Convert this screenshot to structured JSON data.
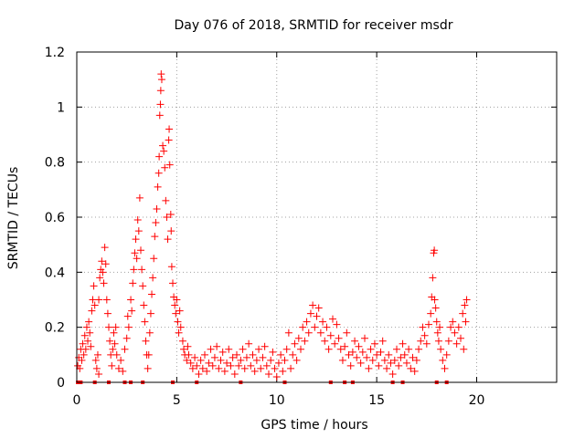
{
  "chart_data": {
    "type": "scatter",
    "title": "Day 076 of 2018, SRMTID for receiver msdr",
    "xlabel": "GPS time / hours",
    "ylabel": "SRMTID / TECUs",
    "xlim": [
      0,
      24
    ],
    "ylim": [
      0,
      1.2
    ],
    "xticks": [
      0,
      5,
      10,
      15,
      20
    ],
    "xtick_labels": [
      "0",
      "5",
      "10",
      "15",
      "20"
    ],
    "yticks": [
      0,
      0.2,
      0.4,
      0.6,
      0.8,
      1,
      1.2
    ],
    "ytick_labels": [
      "0",
      "0.2",
      "0.4",
      "0.6",
      "0.8",
      "1",
      "1.2"
    ],
    "grid": true,
    "marker": "+",
    "color": "#ff0000",
    "series": [
      {
        "name": "SRMTID",
        "points": [
          [
            0.05,
            0.06
          ],
          [
            0.1,
            0.09
          ],
          [
            0.15,
            0.05
          ],
          [
            0.2,
            0.12
          ],
          [
            0.25,
            0.08
          ],
          [
            0.3,
            0.14
          ],
          [
            0.35,
            0.1
          ],
          [
            0.4,
            0.17
          ],
          [
            0.45,
            0.12
          ],
          [
            0.5,
            0.2
          ],
          [
            0.55,
            0.15
          ],
          [
            0.6,
            0.22
          ],
          [
            0.65,
            0.18
          ],
          [
            0.7,
            0.13
          ],
          [
            0.75,
            0.26
          ],
          [
            0.8,
            0.3
          ],
          [
            0.85,
            0.35
          ],
          [
            0.9,
            0.28
          ],
          [
            0.95,
            0.08
          ],
          [
            1.0,
            0.05
          ],
          [
            1.05,
            0.1
          ],
          [
            1.1,
            0.03
          ],
          [
            1.1,
            0.3
          ],
          [
            1.15,
            0.38
          ],
          [
            1.2,
            0.41
          ],
          [
            1.25,
            0.44
          ],
          [
            1.3,
            0.4
          ],
          [
            1.35,
            0.36
          ],
          [
            1.4,
            0.49
          ],
          [
            1.45,
            0.43
          ],
          [
            1.5,
            0.3
          ],
          [
            1.55,
            0.25
          ],
          [
            1.6,
            0.2
          ],
          [
            1.65,
            0.15
          ],
          [
            1.7,
            0.1
          ],
          [
            1.75,
            0.06
          ],
          [
            1.8,
            0.12
          ],
          [
            1.85,
            0.18
          ],
          [
            1.9,
            0.14
          ],
          [
            1.95,
            0.2
          ],
          [
            2.0,
            0.1
          ],
          [
            2.1,
            0.05
          ],
          [
            2.2,
            0.08
          ],
          [
            2.3,
            0.04
          ],
          [
            2.4,
            0.12
          ],
          [
            2.5,
            0.16
          ],
          [
            2.55,
            0.24
          ],
          [
            2.6,
            0.2
          ],
          [
            2.7,
            0.3
          ],
          [
            2.75,
            0.26
          ],
          [
            2.8,
            0.36
          ],
          [
            2.85,
            0.41
          ],
          [
            2.9,
            0.47
          ],
          [
            2.95,
            0.52
          ],
          [
            3.0,
            0.45
          ],
          [
            3.05,
            0.59
          ],
          [
            3.1,
            0.55
          ],
          [
            3.15,
            0.67
          ],
          [
            3.2,
            0.48
          ],
          [
            3.25,
            0.41
          ],
          [
            3.3,
            0.35
          ],
          [
            3.35,
            0.28
          ],
          [
            3.4,
            0.22
          ],
          [
            3.45,
            0.15
          ],
          [
            3.5,
            0.1
          ],
          [
            3.55,
            0.05
          ],
          [
            3.6,
            0.1
          ],
          [
            3.65,
            0.18
          ],
          [
            3.7,
            0.25
          ],
          [
            3.75,
            0.32
          ],
          [
            3.8,
            0.38
          ],
          [
            3.85,
            0.45
          ],
          [
            3.9,
            0.53
          ],
          [
            3.95,
            0.58
          ],
          [
            4.0,
            0.63
          ],
          [
            4.05,
            0.71
          ],
          [
            4.1,
            0.76
          ],
          [
            4.12,
            0.82
          ],
          [
            4.15,
            0.97
          ],
          [
            4.18,
            1.01
          ],
          [
            4.2,
            1.06
          ],
          [
            4.22,
            1.12
          ],
          [
            4.25,
            1.1
          ],
          [
            4.3,
            0.86
          ],
          [
            4.35,
            0.84
          ],
          [
            4.4,
            0.78
          ],
          [
            4.45,
            0.66
          ],
          [
            4.5,
            0.6
          ],
          [
            4.55,
            0.52
          ],
          [
            4.6,
            0.88
          ],
          [
            4.62,
            0.92
          ],
          [
            4.65,
            0.79
          ],
          [
            4.7,
            0.61
          ],
          [
            4.72,
            0.55
          ],
          [
            4.75,
            0.42
          ],
          [
            4.8,
            0.36
          ],
          [
            4.85,
            0.31
          ],
          [
            4.9,
            0.28
          ],
          [
            4.95,
            0.25
          ],
          [
            5.0,
            0.3
          ],
          [
            5.05,
            0.22
          ],
          [
            5.1,
            0.18
          ],
          [
            5.15,
            0.26
          ],
          [
            5.2,
            0.2
          ],
          [
            5.3,
            0.15
          ],
          [
            5.35,
            0.12
          ],
          [
            5.4,
            0.1
          ],
          [
            5.5,
            0.08
          ],
          [
            5.55,
            0.13
          ],
          [
            5.6,
            0.1
          ],
          [
            5.7,
            0.07
          ],
          [
            5.8,
            0.05
          ],
          [
            5.9,
            0.09
          ],
          [
            6.0,
            0.06
          ],
          [
            6.1,
            0.03
          ],
          [
            6.2,
            0.08
          ],
          [
            6.3,
            0.05
          ],
          [
            6.4,
            0.1
          ],
          [
            6.5,
            0.04
          ],
          [
            6.6,
            0.07
          ],
          [
            6.7,
            0.12
          ],
          [
            6.8,
            0.06
          ],
          [
            6.9,
            0.09
          ],
          [
            7.0,
            0.13
          ],
          [
            7.1,
            0.05
          ],
          [
            7.2,
            0.08
          ],
          [
            7.3,
            0.11
          ],
          [
            7.4,
            0.04
          ],
          [
            7.5,
            0.07
          ],
          [
            7.6,
            0.12
          ],
          [
            7.7,
            0.06
          ],
          [
            7.8,
            0.09
          ],
          [
            7.9,
            0.03
          ],
          [
            8.0,
            0.1
          ],
          [
            8.1,
            0.06
          ],
          [
            8.2,
            0.08
          ],
          [
            8.3,
            0.12
          ],
          [
            8.4,
            0.05
          ],
          [
            8.5,
            0.09
          ],
          [
            8.6,
            0.14
          ],
          [
            8.7,
            0.06
          ],
          [
            8.8,
            0.1
          ],
          [
            8.9,
            0.04
          ],
          [
            9.0,
            0.08
          ],
          [
            9.1,
            0.12
          ],
          [
            9.2,
            0.05
          ],
          [
            9.3,
            0.09
          ],
          [
            9.4,
            0.13
          ],
          [
            9.5,
            0.06
          ],
          [
            9.6,
            0.03
          ],
          [
            9.7,
            0.08
          ],
          [
            9.8,
            0.11
          ],
          [
            9.9,
            0.05
          ],
          [
            10.0,
            0.02
          ],
          [
            10.1,
            0.07
          ],
          [
            10.2,
            0.1
          ],
          [
            10.3,
            0.04
          ],
          [
            10.4,
            0.08
          ],
          [
            10.5,
            0.12
          ],
          [
            10.6,
            0.18
          ],
          [
            10.7,
            0.05
          ],
          [
            10.8,
            0.1
          ],
          [
            10.9,
            0.14
          ],
          [
            11.0,
            0.08
          ],
          [
            11.1,
            0.16
          ],
          [
            11.2,
            0.12
          ],
          [
            11.3,
            0.2
          ],
          [
            11.4,
            0.15
          ],
          [
            11.5,
            0.22
          ],
          [
            11.6,
            0.18
          ],
          [
            11.7,
            0.25
          ],
          [
            11.8,
            0.28
          ],
          [
            11.9,
            0.2
          ],
          [
            12.0,
            0.24
          ],
          [
            12.1,
            0.27
          ],
          [
            12.2,
            0.18
          ],
          [
            12.3,
            0.22
          ],
          [
            12.4,
            0.15
          ],
          [
            12.5,
            0.2
          ],
          [
            12.6,
            0.12
          ],
          [
            12.7,
            0.17
          ],
          [
            12.8,
            0.23
          ],
          [
            12.9,
            0.14
          ],
          [
            13.0,
            0.21
          ],
          [
            13.1,
            0.16
          ],
          [
            13.2,
            0.12
          ],
          [
            13.3,
            0.08
          ],
          [
            13.4,
            0.13
          ],
          [
            13.5,
            0.18
          ],
          [
            13.6,
            0.1
          ],
          [
            13.7,
            0.06
          ],
          [
            13.8,
            0.11
          ],
          [
            13.9,
            0.15
          ],
          [
            14.0,
            0.09
          ],
          [
            14.1,
            0.13
          ],
          [
            14.2,
            0.07
          ],
          [
            14.3,
            0.11
          ],
          [
            14.4,
            0.16
          ],
          [
            14.5,
            0.09
          ],
          [
            14.6,
            0.05
          ],
          [
            14.7,
            0.12
          ],
          [
            14.8,
            0.08
          ],
          [
            14.9,
            0.14
          ],
          [
            15.0,
            0.1
          ],
          [
            15.1,
            0.06
          ],
          [
            15.2,
            0.11
          ],
          [
            15.3,
            0.15
          ],
          [
            15.4,
            0.08
          ],
          [
            15.5,
            0.05
          ],
          [
            15.6,
            0.1
          ],
          [
            15.7,
            0.07
          ],
          [
            15.8,
            0.03
          ],
          [
            15.9,
            0.08
          ],
          [
            16.0,
            0.12
          ],
          [
            16.1,
            0.06
          ],
          [
            16.2,
            0.09
          ],
          [
            16.3,
            0.14
          ],
          [
            16.4,
            0.1
          ],
          [
            16.5,
            0.07
          ],
          [
            16.6,
            0.12
          ],
          [
            16.7,
            0.05
          ],
          [
            16.8,
            0.09
          ],
          [
            16.9,
            0.04
          ],
          [
            17.0,
            0.08
          ],
          [
            17.1,
            0.12
          ],
          [
            17.2,
            0.15
          ],
          [
            17.3,
            0.2
          ],
          [
            17.4,
            0.17
          ],
          [
            17.5,
            0.14
          ],
          [
            17.6,
            0.21
          ],
          [
            17.7,
            0.25
          ],
          [
            17.75,
            0.31
          ],
          [
            17.8,
            0.38
          ],
          [
            17.85,
            0.47
          ],
          [
            17.88,
            0.48
          ],
          [
            17.9,
            0.3
          ],
          [
            17.95,
            0.27
          ],
          [
            18.0,
            0.22
          ],
          [
            18.05,
            0.18
          ],
          [
            18.1,
            0.15
          ],
          [
            18.15,
            0.2
          ],
          [
            18.2,
            0.12
          ],
          [
            18.3,
            0.08
          ],
          [
            18.4,
            0.05
          ],
          [
            18.5,
            0.1
          ],
          [
            18.6,
            0.15
          ],
          [
            18.7,
            0.2
          ],
          [
            18.8,
            0.22
          ],
          [
            18.9,
            0.18
          ],
          [
            19.0,
            0.14
          ],
          [
            19.1,
            0.2
          ],
          [
            19.2,
            0.16
          ],
          [
            19.3,
            0.25
          ],
          [
            19.4,
            0.28
          ],
          [
            19.5,
            0.3
          ],
          [
            19.45,
            0.22
          ],
          [
            19.35,
            0.12
          ]
        ]
      }
    ],
    "zero_points_x": [
      0.05,
      0.2,
      0.9,
      1.6,
      2.4,
      2.7,
      3.3,
      4.8,
      6.0,
      8.2,
      10.4,
      12.7,
      13.4,
      13.8,
      15.8,
      16.3,
      18.0,
      18.5
    ]
  }
}
